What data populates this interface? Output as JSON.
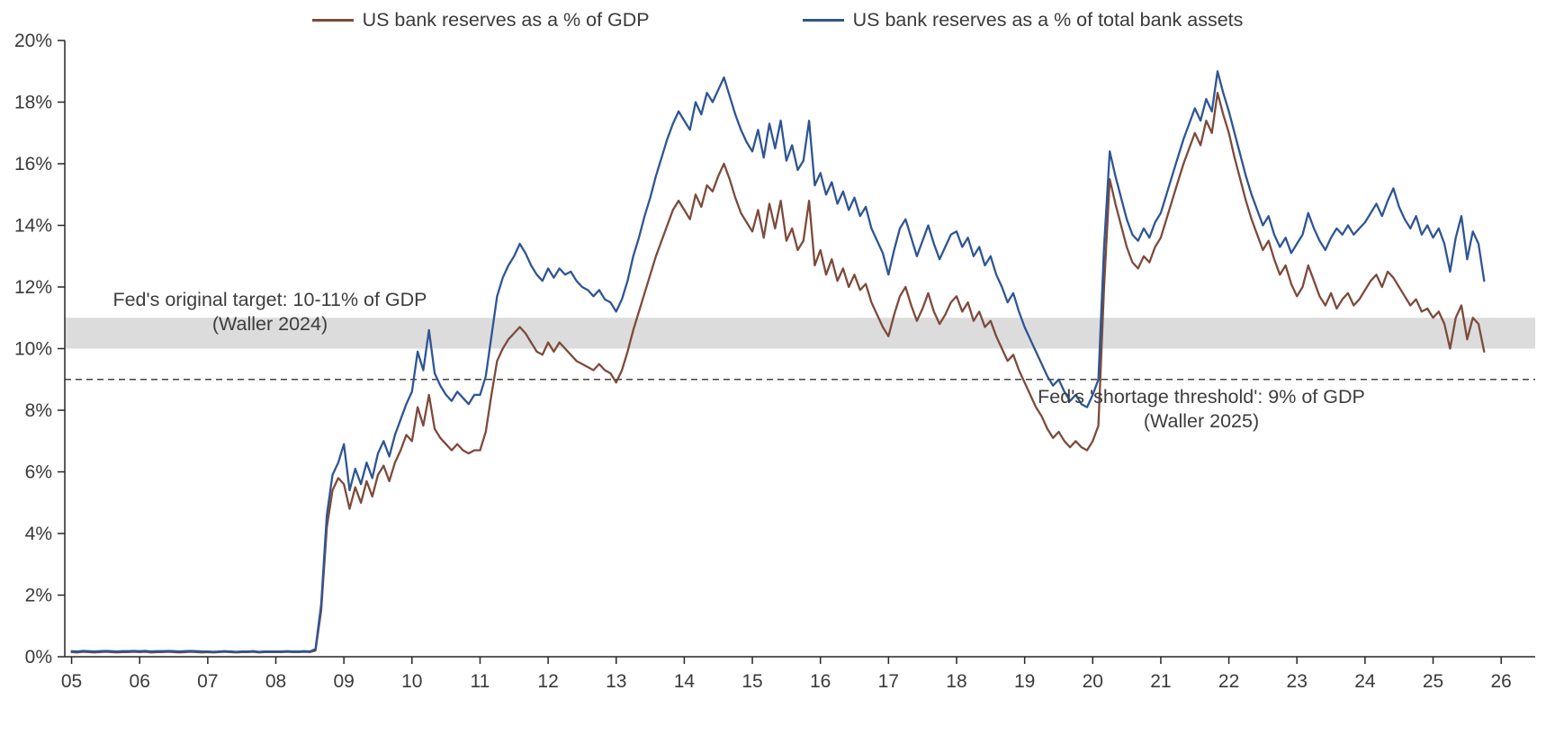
{
  "annotations": {
    "target_band": {
      "line1": "Fed's original target: 10-11% of GDP",
      "line2": "(Waller 2024)",
      "band_from": 10,
      "band_to": 11,
      "band_color": "#dcdcdc"
    },
    "threshold": {
      "line1": "Fed's 'shortage threshold': 9% of GDP",
      "line2": "(Waller 2025)",
      "value": 9,
      "line_color": "#4a413c"
    }
  },
  "chart_data": {
    "type": "line",
    "x_start": 2005,
    "points_per_year": 12,
    "x_axis": {
      "min": 2004.9,
      "max": 2026.5,
      "tick_start": 2005,
      "tick_step": 1,
      "tick_labels": [
        "05",
        "06",
        "07",
        "08",
        "09",
        "10",
        "11",
        "12",
        "13",
        "14",
        "15",
        "16",
        "17",
        "18",
        "19",
        "20",
        "21",
        "22",
        "23",
        "24",
        "25",
        "26"
      ]
    },
    "y_axis": {
      "min": 0,
      "max": 20,
      "tick_step": 2,
      "tick_labels": [
        "0%",
        "2%",
        "4%",
        "6%",
        "8%",
        "10%",
        "12%",
        "14%",
        "16%",
        "18%",
        "20%"
      ]
    },
    "series": [
      {
        "name": "US bank reserves as a % of GDP",
        "color": "#7d4a3a",
        "values": [
          0.15,
          0.14,
          0.16,
          0.15,
          0.14,
          0.15,
          0.16,
          0.15,
          0.14,
          0.15,
          0.15,
          0.16,
          0.15,
          0.16,
          0.14,
          0.15,
          0.15,
          0.16,
          0.15,
          0.14,
          0.15,
          0.16,
          0.15,
          0.14,
          0.15,
          0.14,
          0.15,
          0.16,
          0.15,
          0.14,
          0.15,
          0.15,
          0.16,
          0.14,
          0.15,
          0.15,
          0.15,
          0.15,
          0.16,
          0.15,
          0.15,
          0.16,
          0.15,
          0.2,
          1.5,
          4.2,
          5.4,
          5.8,
          5.6,
          4.8,
          5.5,
          5.0,
          5.7,
          5.2,
          5.9,
          6.2,
          5.7,
          6.3,
          6.7,
          7.2,
          7.0,
          8.1,
          7.5,
          8.5,
          7.4,
          7.1,
          6.9,
          6.7,
          6.9,
          6.7,
          6.6,
          6.7,
          6.7,
          7.3,
          8.5,
          9.6,
          10.0,
          10.3,
          10.5,
          10.7,
          10.5,
          10.2,
          9.9,
          9.8,
          10.2,
          9.9,
          10.2,
          10.0,
          9.8,
          9.6,
          9.5,
          9.4,
          9.3,
          9.5,
          9.3,
          9.2,
          8.9,
          9.3,
          9.9,
          10.6,
          11.2,
          11.8,
          12.4,
          13.0,
          13.5,
          14.0,
          14.5,
          14.8,
          14.5,
          14.2,
          15.0,
          14.6,
          15.3,
          15.1,
          15.6,
          16.0,
          15.5,
          14.9,
          14.4,
          14.1,
          13.8,
          14.5,
          13.6,
          14.7,
          13.9,
          14.8,
          13.5,
          13.9,
          13.2,
          13.5,
          14.8,
          12.7,
          13.2,
          12.4,
          12.9,
          12.2,
          12.6,
          12.0,
          12.4,
          11.9,
          12.1,
          11.5,
          11.1,
          10.7,
          10.4,
          11.1,
          11.7,
          12.0,
          11.4,
          10.9,
          11.3,
          11.8,
          11.2,
          10.8,
          11.1,
          11.5,
          11.7,
          11.2,
          11.5,
          10.9,
          11.2,
          10.7,
          10.9,
          10.4,
          10.0,
          9.6,
          9.8,
          9.3,
          8.9,
          8.5,
          8.1,
          7.8,
          7.4,
          7.1,
          7.3,
          7.0,
          6.8,
          7.0,
          6.8,
          6.7,
          7.0,
          7.5,
          12.0,
          15.5,
          14.7,
          14.0,
          13.3,
          12.8,
          12.6,
          13.0,
          12.8,
          13.3,
          13.6,
          14.2,
          14.8,
          15.4,
          16.0,
          16.5,
          17.0,
          16.6,
          17.4,
          17.0,
          18.3,
          17.6,
          17.0,
          16.2,
          15.5,
          14.8,
          14.2,
          13.7,
          13.2,
          13.5,
          12.9,
          12.4,
          12.7,
          12.1,
          11.7,
          12.0,
          12.7,
          12.2,
          11.7,
          11.4,
          11.8,
          11.3,
          11.6,
          11.8,
          11.4,
          11.6,
          11.9,
          12.2,
          12.4,
          12.0,
          12.5,
          12.3,
          12.0,
          11.7,
          11.4,
          11.6,
          11.2,
          11.3,
          11.0,
          11.2,
          10.8,
          10.0,
          11.0,
          11.4,
          10.3,
          11.0,
          10.8,
          9.9
        ]
      },
      {
        "name": "US bank reserves as a % of total bank assets",
        "color": "#2e5594",
        "values": [
          0.18,
          0.17,
          0.19,
          0.18,
          0.17,
          0.18,
          0.19,
          0.18,
          0.17,
          0.18,
          0.18,
          0.19,
          0.18,
          0.19,
          0.17,
          0.18,
          0.18,
          0.19,
          0.18,
          0.17,
          0.18,
          0.19,
          0.18,
          0.17,
          0.17,
          0.16,
          0.17,
          0.18,
          0.17,
          0.16,
          0.17,
          0.17,
          0.18,
          0.16,
          0.17,
          0.17,
          0.17,
          0.17,
          0.18,
          0.17,
          0.17,
          0.18,
          0.17,
          0.25,
          1.7,
          4.6,
          5.9,
          6.3,
          6.9,
          5.4,
          6.1,
          5.6,
          6.3,
          5.8,
          6.6,
          7.0,
          6.5,
          7.2,
          7.7,
          8.2,
          8.6,
          9.9,
          9.3,
          10.6,
          9.2,
          8.8,
          8.5,
          8.3,
          8.6,
          8.4,
          8.2,
          8.5,
          8.5,
          9.1,
          10.4,
          11.7,
          12.3,
          12.7,
          13.0,
          13.4,
          13.1,
          12.7,
          12.4,
          12.2,
          12.6,
          12.3,
          12.6,
          12.4,
          12.5,
          12.2,
          12.0,
          11.9,
          11.7,
          11.9,
          11.6,
          11.5,
          11.2,
          11.6,
          12.2,
          13.0,
          13.6,
          14.3,
          14.9,
          15.6,
          16.2,
          16.8,
          17.3,
          17.7,
          17.4,
          17.1,
          18.0,
          17.6,
          18.3,
          18.0,
          18.4,
          18.8,
          18.2,
          17.6,
          17.1,
          16.7,
          16.4,
          17.1,
          16.2,
          17.3,
          16.5,
          17.4,
          16.1,
          16.6,
          15.8,
          16.1,
          17.4,
          15.3,
          15.7,
          15.0,
          15.4,
          14.7,
          15.1,
          14.5,
          14.9,
          14.3,
          14.6,
          13.9,
          13.5,
          13.1,
          12.4,
          13.2,
          13.9,
          14.2,
          13.6,
          13.0,
          13.5,
          14.0,
          13.4,
          12.9,
          13.3,
          13.7,
          13.8,
          13.3,
          13.6,
          13.0,
          13.3,
          12.7,
          13.0,
          12.4,
          12.0,
          11.5,
          11.8,
          11.2,
          10.7,
          10.3,
          9.9,
          9.5,
          9.1,
          8.8,
          9.0,
          8.6,
          8.3,
          8.5,
          8.2,
          8.1,
          8.5,
          9.0,
          13.3,
          16.4,
          15.6,
          14.9,
          14.2,
          13.7,
          13.5,
          13.9,
          13.6,
          14.1,
          14.4,
          15.0,
          15.6,
          16.2,
          16.8,
          17.3,
          17.8,
          17.4,
          18.1,
          17.7,
          19.0,
          18.3,
          17.7,
          17.0,
          16.3,
          15.6,
          15.0,
          14.5,
          14.0,
          14.3,
          13.7,
          13.3,
          13.6,
          13.1,
          13.4,
          13.7,
          14.4,
          13.9,
          13.5,
          13.2,
          13.6,
          13.9,
          13.7,
          14.0,
          13.7,
          13.9,
          14.1,
          14.4,
          14.7,
          14.3,
          14.8,
          15.2,
          14.6,
          14.2,
          13.9,
          14.3,
          13.7,
          14.0,
          13.6,
          13.9,
          13.4,
          12.5,
          13.6,
          14.3,
          12.9,
          13.8,
          13.4,
          12.2
        ]
      }
    ]
  }
}
